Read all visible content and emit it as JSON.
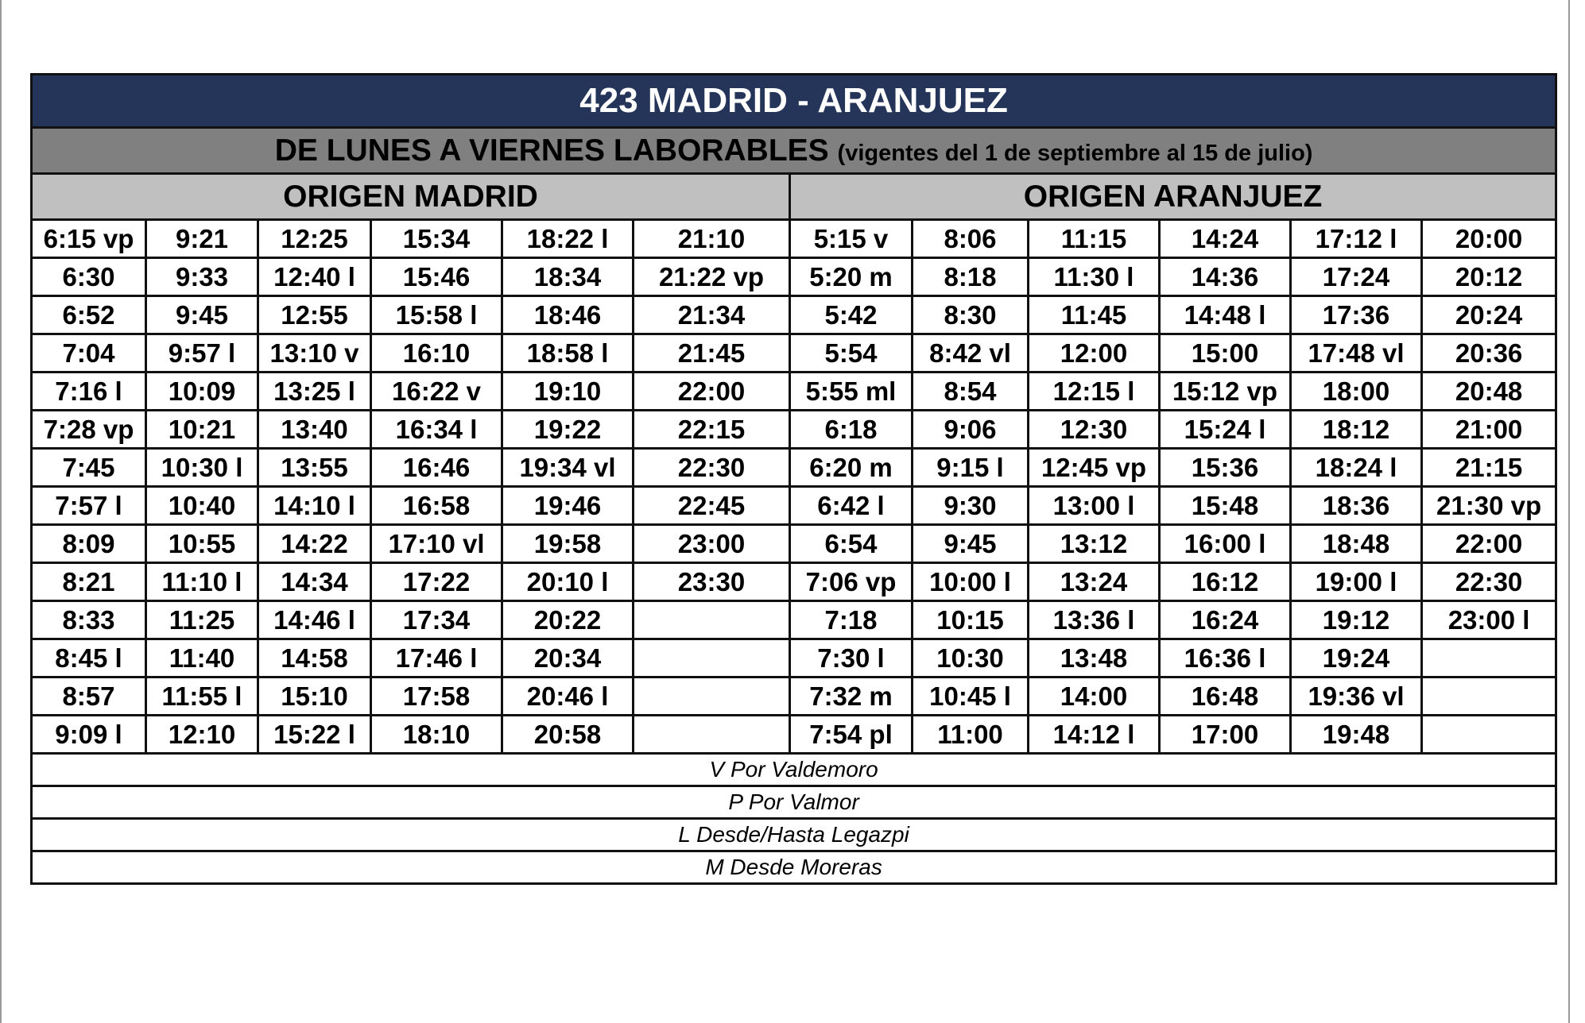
{
  "header": {
    "title": "423 MADRID - ARANJUEZ",
    "subtitle": "DE LUNES A VIERNES LABORABLES",
    "validity": "(vigentes del 1 de septiembre al 15 de julio)"
  },
  "table": {
    "origins": [
      "ORIGEN MADRID",
      "ORIGEN ARANJUEZ"
    ],
    "rows": [
      [
        "6:15 vp",
        "9:21",
        "12:25",
        "15:34",
        "18:22 l",
        "21:10",
        "5:15 v",
        "8:06",
        "11:15",
        "14:24",
        "17:12 l",
        "20:00"
      ],
      [
        "6:30",
        "9:33",
        "12:40 l",
        "15:46",
        "18:34",
        "21:22 vp",
        "5:20 m",
        "8:18",
        "11:30 l",
        "14:36",
        "17:24",
        "20:12"
      ],
      [
        "6:52",
        "9:45",
        "12:55",
        "15:58 l",
        "18:46",
        "21:34",
        "5:42",
        "8:30",
        "11:45",
        "14:48 l",
        "17:36",
        "20:24"
      ],
      [
        "7:04",
        "9:57 l",
        "13:10 v",
        "16:10",
        "18:58 l",
        "21:45",
        "5:54",
        "8:42 vl",
        "12:00",
        "15:00",
        "17:48 vl",
        "20:36"
      ],
      [
        "7:16 l",
        "10:09",
        "13:25 l",
        "16:22 v",
        "19:10",
        "22:00",
        "5:55 ml",
        "8:54",
        "12:15 l",
        "15:12 vp",
        "18:00",
        "20:48"
      ],
      [
        "7:28 vp",
        "10:21",
        "13:40",
        "16:34 l",
        "19:22",
        "22:15",
        "6:18",
        "9:06",
        "12:30",
        "15:24 l",
        "18:12",
        "21:00"
      ],
      [
        "7:45",
        "10:30 l",
        "13:55",
        "16:46",
        "19:34 vl",
        "22:30",
        "6:20 m",
        "9:15 l",
        "12:45 vp",
        "15:36",
        "18:24 l",
        "21:15"
      ],
      [
        "7:57 l",
        "10:40",
        "14:10 l",
        "16:58",
        "19:46",
        "22:45",
        "6:42 l",
        "9:30",
        "13:00 l",
        "15:48",
        "18:36",
        "21:30 vp"
      ],
      [
        "8:09",
        "10:55",
        "14:22",
        "17:10 vl",
        "19:58",
        "23:00",
        "6:54",
        "9:45",
        "13:12",
        "16:00 l",
        "18:48",
        "22:00"
      ],
      [
        "8:21",
        "11:10 l",
        "14:34",
        "17:22",
        "20:10 l",
        "23:30",
        "7:06 vp",
        "10:00 l",
        "13:24",
        "16:12",
        "19:00 l",
        "22:30"
      ],
      [
        "8:33",
        "11:25",
        "14:46 l",
        "17:34",
        "20:22",
        null,
        "7:18",
        "10:15",
        "13:36 l",
        "16:24",
        "19:12",
        "23:00 l"
      ],
      [
        "8:45 l",
        "11:40",
        "14:58",
        "17:46 l",
        "20:34",
        null,
        "7:30 l",
        "10:30",
        "13:48",
        "16:36 l",
        "19:24",
        null
      ],
      [
        "8:57",
        "11:55 l",
        "15:10",
        "17:58",
        "20:46 l",
        null,
        "7:32 m",
        "10:45 l",
        "14:00",
        "16:48",
        "19:36 vl",
        null
      ],
      [
        "9:09 l",
        "12:10",
        "15:22 l",
        "18:10",
        "20:58",
        null,
        "7:54 pl",
        "11:00",
        "14:12 l",
        "17:00",
        "19:48",
        null
      ]
    ]
  },
  "notes": [
    "V Por Valdemoro",
    "P Por Valmor",
    "L Desde/Hasta Legazpi",
    "M Desde Moreras"
  ]
}
